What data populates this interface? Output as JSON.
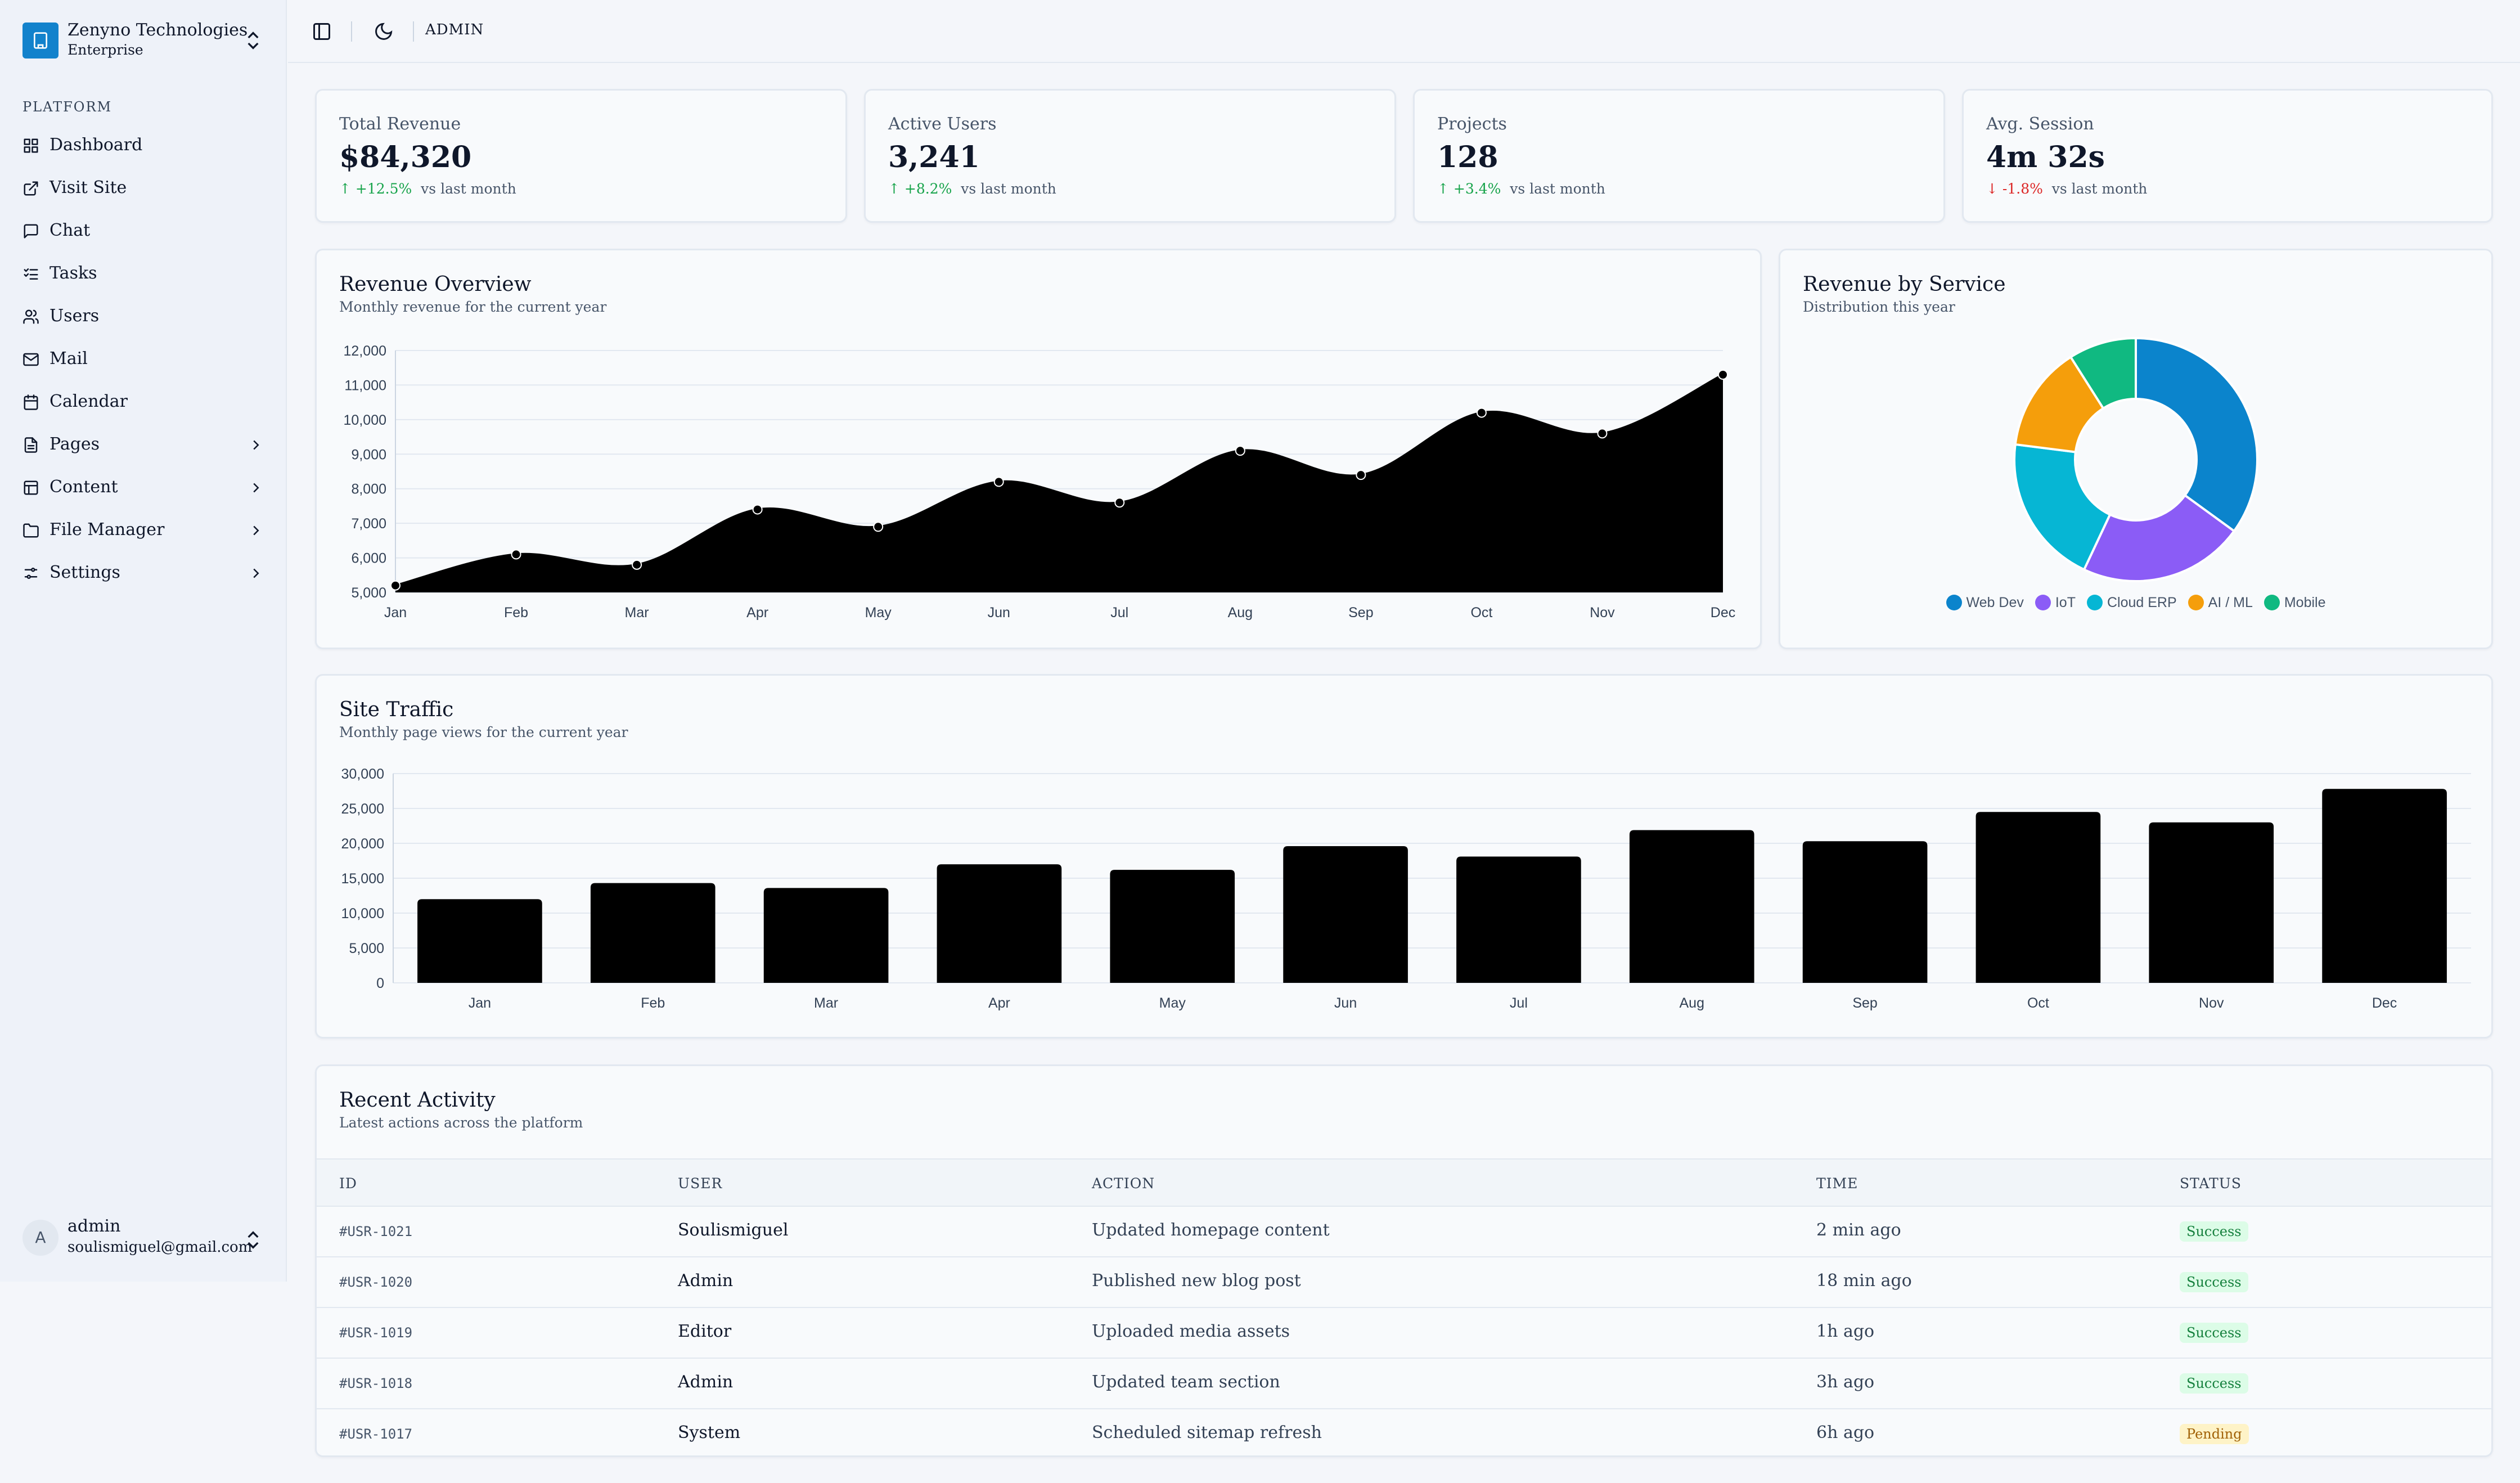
{
  "brand": {
    "name": "Zenyno Technologies",
    "plan": "Enterprise"
  },
  "sidebar": {
    "section": "PLATFORM",
    "items": [
      {
        "label": "Dashboard",
        "icon": "dashboard-icon"
      },
      {
        "label": "Visit Site",
        "icon": "external-link-icon"
      },
      {
        "label": "Chat",
        "icon": "chat-icon"
      },
      {
        "label": "Tasks",
        "icon": "tasks-icon"
      },
      {
        "label": "Users",
        "icon": "users-icon"
      },
      {
        "label": "Mail",
        "icon": "mail-icon"
      },
      {
        "label": "Calendar",
        "icon": "calendar-icon"
      },
      {
        "label": "Pages",
        "icon": "file-icon",
        "expandable": true
      },
      {
        "label": "Content",
        "icon": "layout-icon",
        "expandable": true
      },
      {
        "label": "File Manager",
        "icon": "folder-icon",
        "expandable": true
      },
      {
        "label": "Settings",
        "icon": "settings-icon",
        "expandable": true
      }
    ]
  },
  "user": {
    "initial": "A",
    "name": "admin",
    "email": "soulismiguel@gmail.com"
  },
  "topbar": {
    "title": "ADMIN"
  },
  "stats": [
    {
      "label": "Total Revenue",
      "value": "$84,320",
      "delta": "↑ +12.5%",
      "delta_dir": "up",
      "suffix": "vs last month"
    },
    {
      "label": "Active Users",
      "value": "3,241",
      "delta": "↑ +8.2%",
      "delta_dir": "up",
      "suffix": "vs last month"
    },
    {
      "label": "Projects",
      "value": "128",
      "delta": "↑ +3.4%",
      "delta_dir": "up",
      "suffix": "vs last month"
    },
    {
      "label": "Avg. Session",
      "value": "4m 32s",
      "delta": "↓ -1.8%",
      "delta_dir": "down",
      "suffix": "vs last month"
    }
  ],
  "revenue_card": {
    "title": "Revenue Overview",
    "subtitle": "Monthly revenue for the current year"
  },
  "service_card": {
    "title": "Revenue by Service",
    "subtitle": "Distribution this year"
  },
  "traffic_card": {
    "title": "Site Traffic",
    "subtitle": "Monthly page views for the current year"
  },
  "activity": {
    "title": "Recent Activity",
    "subtitle": "Latest actions across the platform",
    "columns": [
      "ID",
      "USER",
      "ACTION",
      "TIME",
      "STATUS"
    ],
    "rows": [
      {
        "id": "#USR-1021",
        "user": "Soulismiguel",
        "action": "Updated homepage content",
        "time": "2 min ago",
        "status": "Success"
      },
      {
        "id": "#USR-1020",
        "user": "Admin",
        "action": "Published new blog post",
        "time": "18 min ago",
        "status": "Success"
      },
      {
        "id": "#USR-1019",
        "user": "Editor",
        "action": "Uploaded media assets",
        "time": "1h ago",
        "status": "Success"
      },
      {
        "id": "#USR-1018",
        "user": "Admin",
        "action": "Updated team section",
        "time": "3h ago",
        "status": "Success"
      },
      {
        "id": "#USR-1017",
        "user": "System",
        "action": "Scheduled sitemap refresh",
        "time": "6h ago",
        "status": "Pending"
      }
    ]
  },
  "colors": {
    "brand": "#1282cc",
    "up": "#16a34a",
    "down": "#dc2626"
  },
  "chart_data": [
    {
      "type": "area",
      "categories": [
        "Jan",
        "Feb",
        "Mar",
        "Apr",
        "May",
        "Jun",
        "Jul",
        "Aug",
        "Sep",
        "Oct",
        "Nov",
        "Dec"
      ],
      "values": [
        5200,
        6100,
        5800,
        7400,
        6900,
        8200,
        7600,
        9100,
        8400,
        10200,
        9600,
        11300
      ],
      "ylim": [
        5000,
        12000
      ],
      "yticks": [
        "5,000",
        "6,000",
        "7,000",
        "8,000",
        "9,000",
        "10,000",
        "11,000",
        "12,000"
      ],
      "grid": true,
      "color": "#000000"
    },
    {
      "type": "pie",
      "series": [
        {
          "name": "Web Dev",
          "value": 35,
          "color": "#0b84cc"
        },
        {
          "name": "IoT",
          "value": 22,
          "color": "#8b5cf6"
        },
        {
          "name": "Cloud ERP",
          "value": 20,
          "color": "#06b6d4"
        },
        {
          "name": "AI / ML",
          "value": 14,
          "color": "#f59e0b"
        },
        {
          "name": "Mobile",
          "value": 9,
          "color": "#10b981"
        }
      ],
      "legend": "bottom"
    },
    {
      "type": "bar",
      "categories": [
        "Jan",
        "Feb",
        "Mar",
        "Apr",
        "May",
        "Jun",
        "Jul",
        "Aug",
        "Sep",
        "Oct",
        "Nov",
        "Dec"
      ],
      "values": [
        12000,
        14300,
        13600,
        17000,
        16200,
        19600,
        18100,
        21900,
        20300,
        24500,
        23000,
        27800
      ],
      "ylim": [
        0,
        30000
      ],
      "yticks": [
        "0",
        "5,000",
        "10,000",
        "15,000",
        "20,000",
        "25,000",
        "30,000"
      ],
      "grid": true,
      "color": "#000000"
    }
  ]
}
